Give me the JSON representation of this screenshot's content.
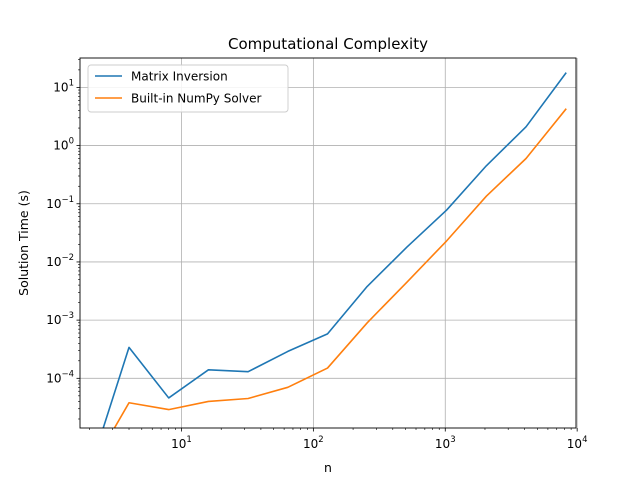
{
  "chart_data": {
    "type": "line",
    "title": "Computational Complexity",
    "xlabel": "n",
    "ylabel": "Solution Time (s)",
    "xscale": "log",
    "yscale": "log",
    "xlim": [
      1.7,
      9800
    ],
    "ylim": [
      1.4e-05,
      32
    ],
    "grid": true,
    "legend_position": "top-left",
    "x_ticks": [
      {
        "value": 10,
        "base": "10",
        "exp": "1"
      },
      {
        "value": 100,
        "base": "10",
        "exp": "2"
      },
      {
        "value": 1000,
        "base": "10",
        "exp": "3"
      },
      {
        "value": 10000,
        "base": "10",
        "exp": "4"
      }
    ],
    "y_ticks": [
      {
        "value": 0.0001,
        "base": "10",
        "exp": "−4"
      },
      {
        "value": 0.001,
        "base": "10",
        "exp": "−3"
      },
      {
        "value": 0.01,
        "base": "10",
        "exp": "−2"
      },
      {
        "value": 0.1,
        "base": "10",
        "exp": "−1"
      },
      {
        "value": 1,
        "base": "10",
        "exp": "0"
      },
      {
        "value": 10,
        "base": "10",
        "exp": "1"
      }
    ],
    "series": [
      {
        "name": "Matrix Inversion",
        "color": "#1f77b4",
        "x": [
          2,
          4,
          8,
          16,
          32,
          64,
          128,
          256,
          512,
          1024,
          2048,
          4096,
          8192
        ],
        "y": [
          2.5e-06,
          0.00034,
          4.6e-05,
          0.00014,
          0.00013,
          0.00029,
          0.00058,
          0.0038,
          0.018,
          0.078,
          0.45,
          2.1,
          17.5
        ]
      },
      {
        "name": "Built-in NumPy Solver",
        "color": "#ff7f0e",
        "x": [
          2,
          4,
          8,
          16,
          32,
          64,
          128,
          256,
          512,
          1024,
          2048,
          4096,
          8192
        ],
        "y": [
          2.5e-06,
          3.8e-05,
          2.9e-05,
          4e-05,
          4.5e-05,
          7e-05,
          0.00015,
          0.0009,
          0.0045,
          0.023,
          0.135,
          0.6,
          4.2
        ]
      }
    ]
  }
}
